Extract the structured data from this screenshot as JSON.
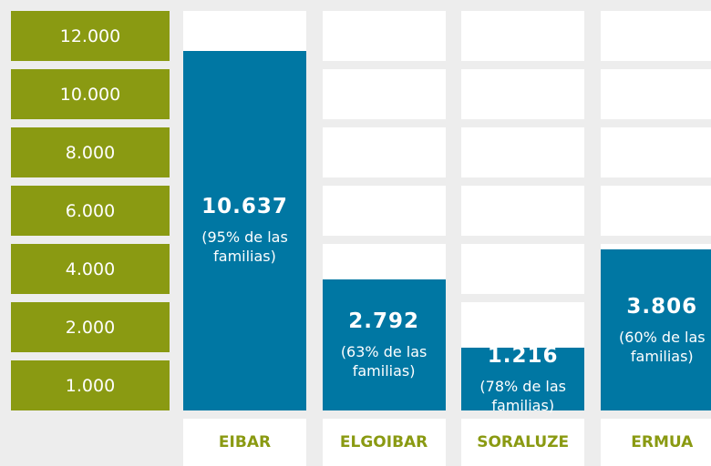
{
  "chart_data": {
    "type": "bar",
    "categories": [
      "EIBAR",
      "ELGOIBAR",
      "SORALUZE",
      "ERMUA"
    ],
    "values": [
      10637,
      2792,
      1216,
      3806
    ],
    "value_labels": [
      "10.637",
      "2.792",
      "1.216",
      "3.806"
    ],
    "annotations": [
      "(95% de las familias)",
      "(63% de las familias)",
      "(78% de las familias)",
      "(60% de las familias)"
    ],
    "color": "#0077a3",
    "tick_color": "#8a9a12",
    "ylim": [
      0,
      12000
    ],
    "yticks": [
      {
        "value": 12000,
        "label": "12.000"
      },
      {
        "value": 10000,
        "label": "10.000"
      },
      {
        "value": 8000,
        "label": "8.000"
      },
      {
        "value": 6000,
        "label": "6.000"
      },
      {
        "value": 4000,
        "label": "4.000"
      },
      {
        "value": 2000,
        "label": "2.000"
      },
      {
        "value": 1000,
        "label": "1.000"
      }
    ]
  }
}
